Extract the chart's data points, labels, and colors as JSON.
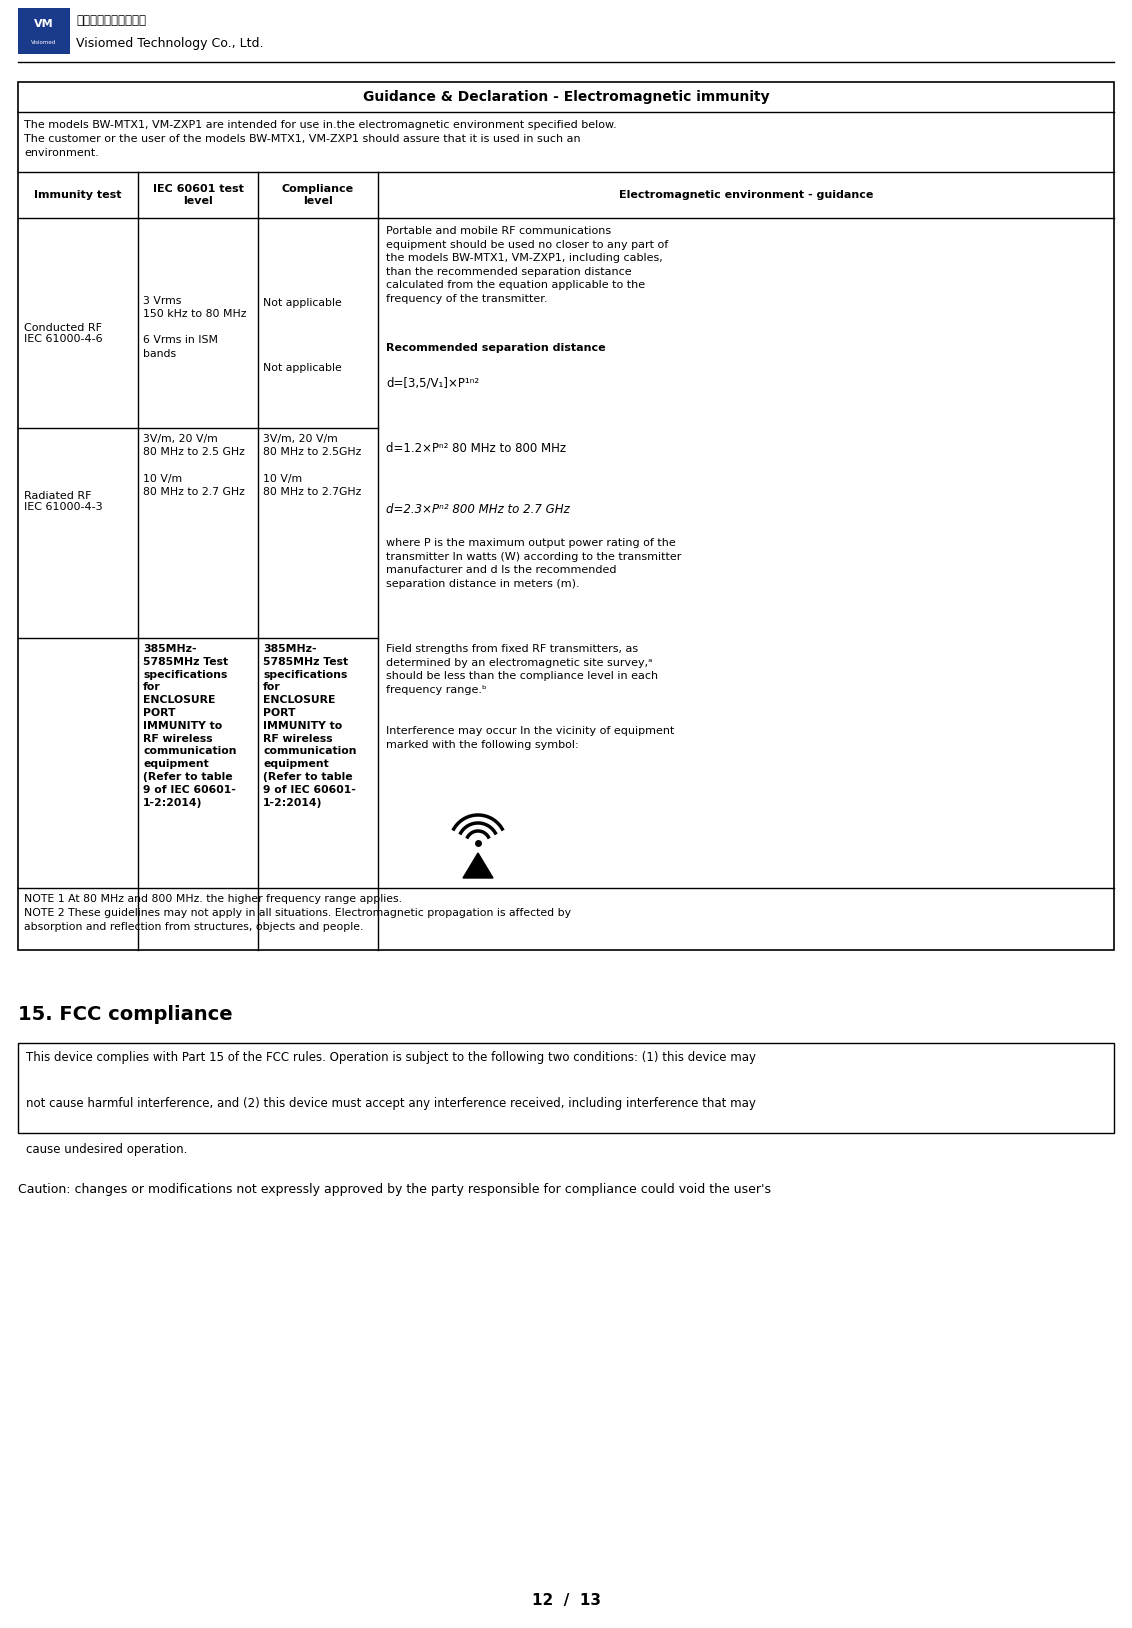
{
  "figsize": [
    11.32,
    16.28
  ],
  "dpi": 100,
  "bg_color": "#ffffff",
  "logo_box_color": "#1a3a8c",
  "company_chinese": "深圳理思科技有限公司",
  "company_english": "Visiomed Technology Co., Ltd.",
  "table_title": "Guidance & Declaration - Electromagnetic immunity",
  "table_intro": "The models BW-MTX1, VM-ZXP1 are intended for use in.the electromagnetic environment specified below.\nThe customer or the user of the models BW-MTX1, VM-ZXP1 should assure that it is used in such an\nenvironment.",
  "col_headers": [
    "Immunity test",
    "IEC 60601 test\nlevel",
    "Compliance\nlevel",
    "Electromagnetic environment - guidance"
  ],
  "note1": "NOTE 1 At 80 MHz and 800 MHz. the higher frequency range applies.",
  "note2": "NOTE 2 These guidelines may not apply in all situations. Electromagnetic propagation is affected by\nabsorption and reflection from structures, objects and people.",
  "section_title": "15. FCC compliance",
  "fcc_box_text": "This device complies with Part 15 of the FCC rules. Operation is subject to the following two conditions: (1) this device may\n\nnot cause harmful interference, and (2) this device must accept any interference received, including interference that may\n\ncause undesired operation.",
  "caution_text": "Caution: changes or modifications not expressly approved by the party responsible for compliance could void the user's",
  "page_num": "12  /  13"
}
